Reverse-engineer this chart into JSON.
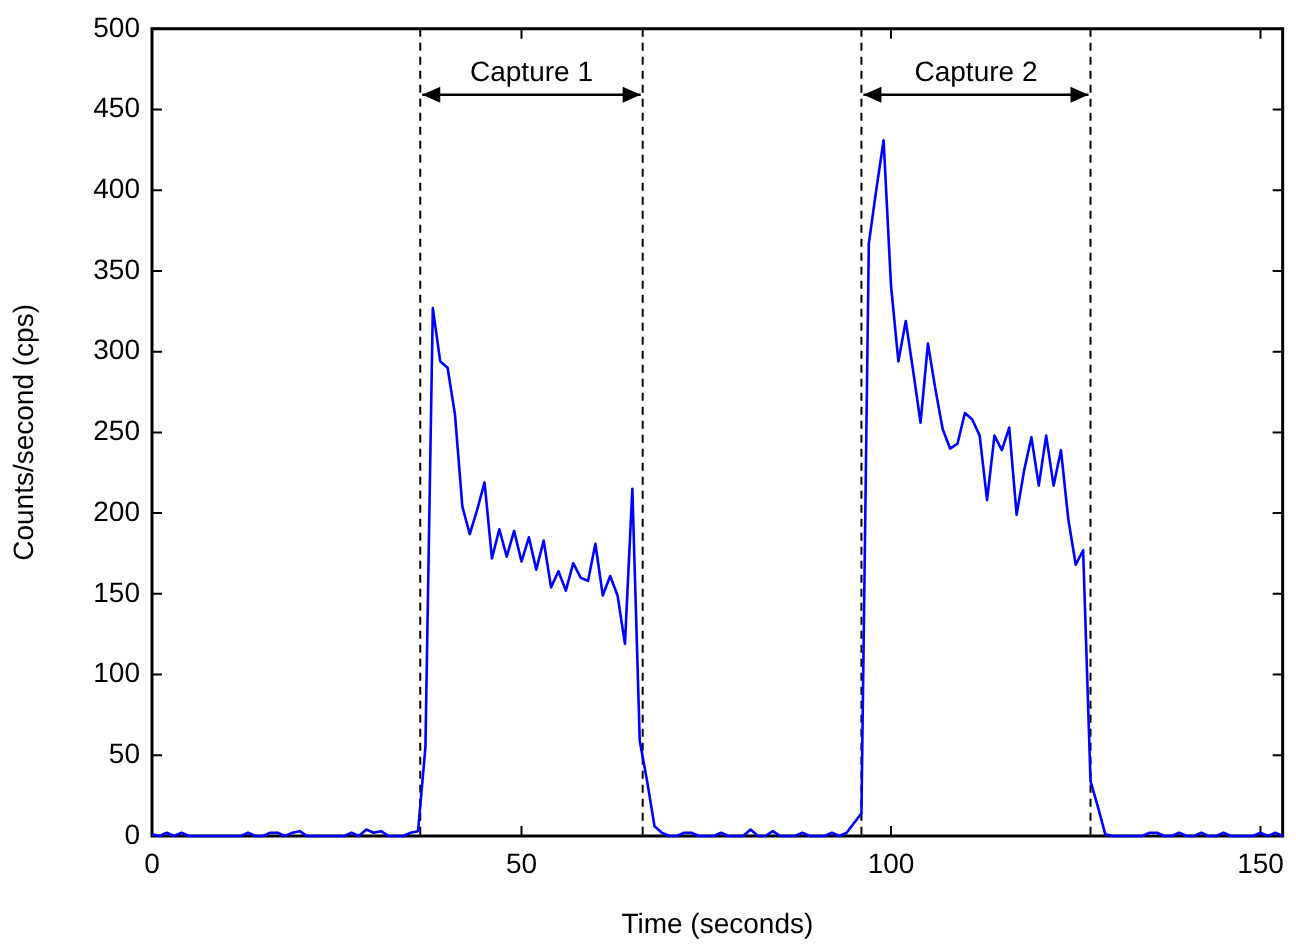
{
  "chart_data": {
    "type": "line",
    "xlabel": "Time (seconds)",
    "ylabel": "Counts/second (cps)",
    "x": [
      0,
      1,
      2,
      3,
      4,
      5,
      6,
      7,
      8,
      9,
      10,
      11,
      12,
      13,
      14,
      15,
      16,
      17,
      18,
      19,
      20,
      21,
      22,
      23,
      24,
      25,
      26,
      27,
      28,
      29,
      30,
      31,
      32,
      33,
      34,
      35,
      36,
      37,
      38,
      39,
      40,
      41,
      42,
      43,
      44,
      45,
      46,
      47,
      48,
      49,
      50,
      51,
      52,
      53,
      54,
      55,
      56,
      57,
      58,
      59,
      60,
      61,
      62,
      63,
      64,
      65,
      66,
      67,
      68,
      69,
      70,
      71,
      72,
      73,
      74,
      75,
      76,
      77,
      78,
      79,
      80,
      81,
      82,
      83,
      84,
      85,
      86,
      87,
      88,
      89,
      90,
      91,
      92,
      93,
      94,
      95,
      96,
      97,
      98,
      99,
      100,
      101,
      102,
      103,
      104,
      105,
      106,
      107,
      108,
      109,
      110,
      111,
      112,
      113,
      114,
      115,
      116,
      117,
      118,
      119,
      120,
      121,
      122,
      123,
      124,
      125,
      126,
      127,
      128,
      129,
      130,
      131,
      132,
      133,
      134,
      135,
      136,
      137,
      138,
      139,
      140,
      141,
      142,
      143,
      144,
      145,
      146,
      147,
      148,
      149,
      150,
      151,
      152,
      153
    ],
    "series": [
      {
        "color": "#0000ff",
        "values": [
          1,
          0,
          2,
          0,
          2,
          0,
          0,
          0,
          0,
          0,
          0,
          0,
          0,
          2,
          0,
          0,
          2,
          2,
          0,
          2,
          3,
          0,
          0,
          0,
          0,
          0,
          0,
          2,
          0,
          4,
          2,
          3,
          0,
          0,
          0,
          2,
          3,
          55,
          327,
          294,
          290,
          261,
          204,
          187,
          202,
          219,
          172,
          190,
          173,
          189,
          170,
          185,
          165,
          183,
          154,
          164,
          152,
          169,
          160,
          158,
          181,
          149,
          161,
          149,
          119,
          215,
          59,
          34,
          6,
          2,
          0,
          0,
          2,
          2,
          0,
          0,
          0,
          2,
          0,
          0,
          0,
          4,
          0,
          0,
          3,
          0,
          0,
          0,
          2,
          0,
          0,
          0,
          2,
          0,
          2,
          8,
          14,
          367,
          400,
          431,
          341,
          294,
          319,
          288,
          256,
          305,
          277,
          252,
          240,
          243,
          262,
          258,
          248,
          208,
          248,
          239,
          253,
          199,
          226,
          247,
          217,
          248,
          217,
          239,
          196,
          168,
          177,
          34,
          18,
          1,
          0,
          0,
          0,
          0,
          0,
          2,
          2,
          0,
          0,
          2,
          0,
          0,
          2,
          0,
          0,
          2,
          0,
          0,
          0,
          0,
          2,
          0,
          2,
          0
        ]
      }
    ],
    "xlim": [
      0,
      153
    ],
    "xticks": [
      0,
      50,
      100,
      150
    ],
    "ylim": [
      0,
      500
    ],
    "yticks": [
      0,
      50,
      100,
      150,
      200,
      250,
      300,
      350,
      400,
      450,
      500
    ],
    "grid": false,
    "legend": false,
    "marker": "none",
    "line_style": "solid",
    "ref_lines": [
      {
        "axis": "x",
        "value": 36.3,
        "line_style": "dashed",
        "color": "#000000"
      },
      {
        "axis": "x",
        "value": 66.4,
        "line_style": "dashed",
        "color": "#000000"
      },
      {
        "axis": "x",
        "value": 96,
        "line_style": "dashed",
        "color": "#000000"
      },
      {
        "axis": "x",
        "value": 127,
        "line_style": "dashed",
        "color": "#000000"
      }
    ],
    "annotations": [
      "Capture 1",
      "Capture 2"
    ]
  }
}
